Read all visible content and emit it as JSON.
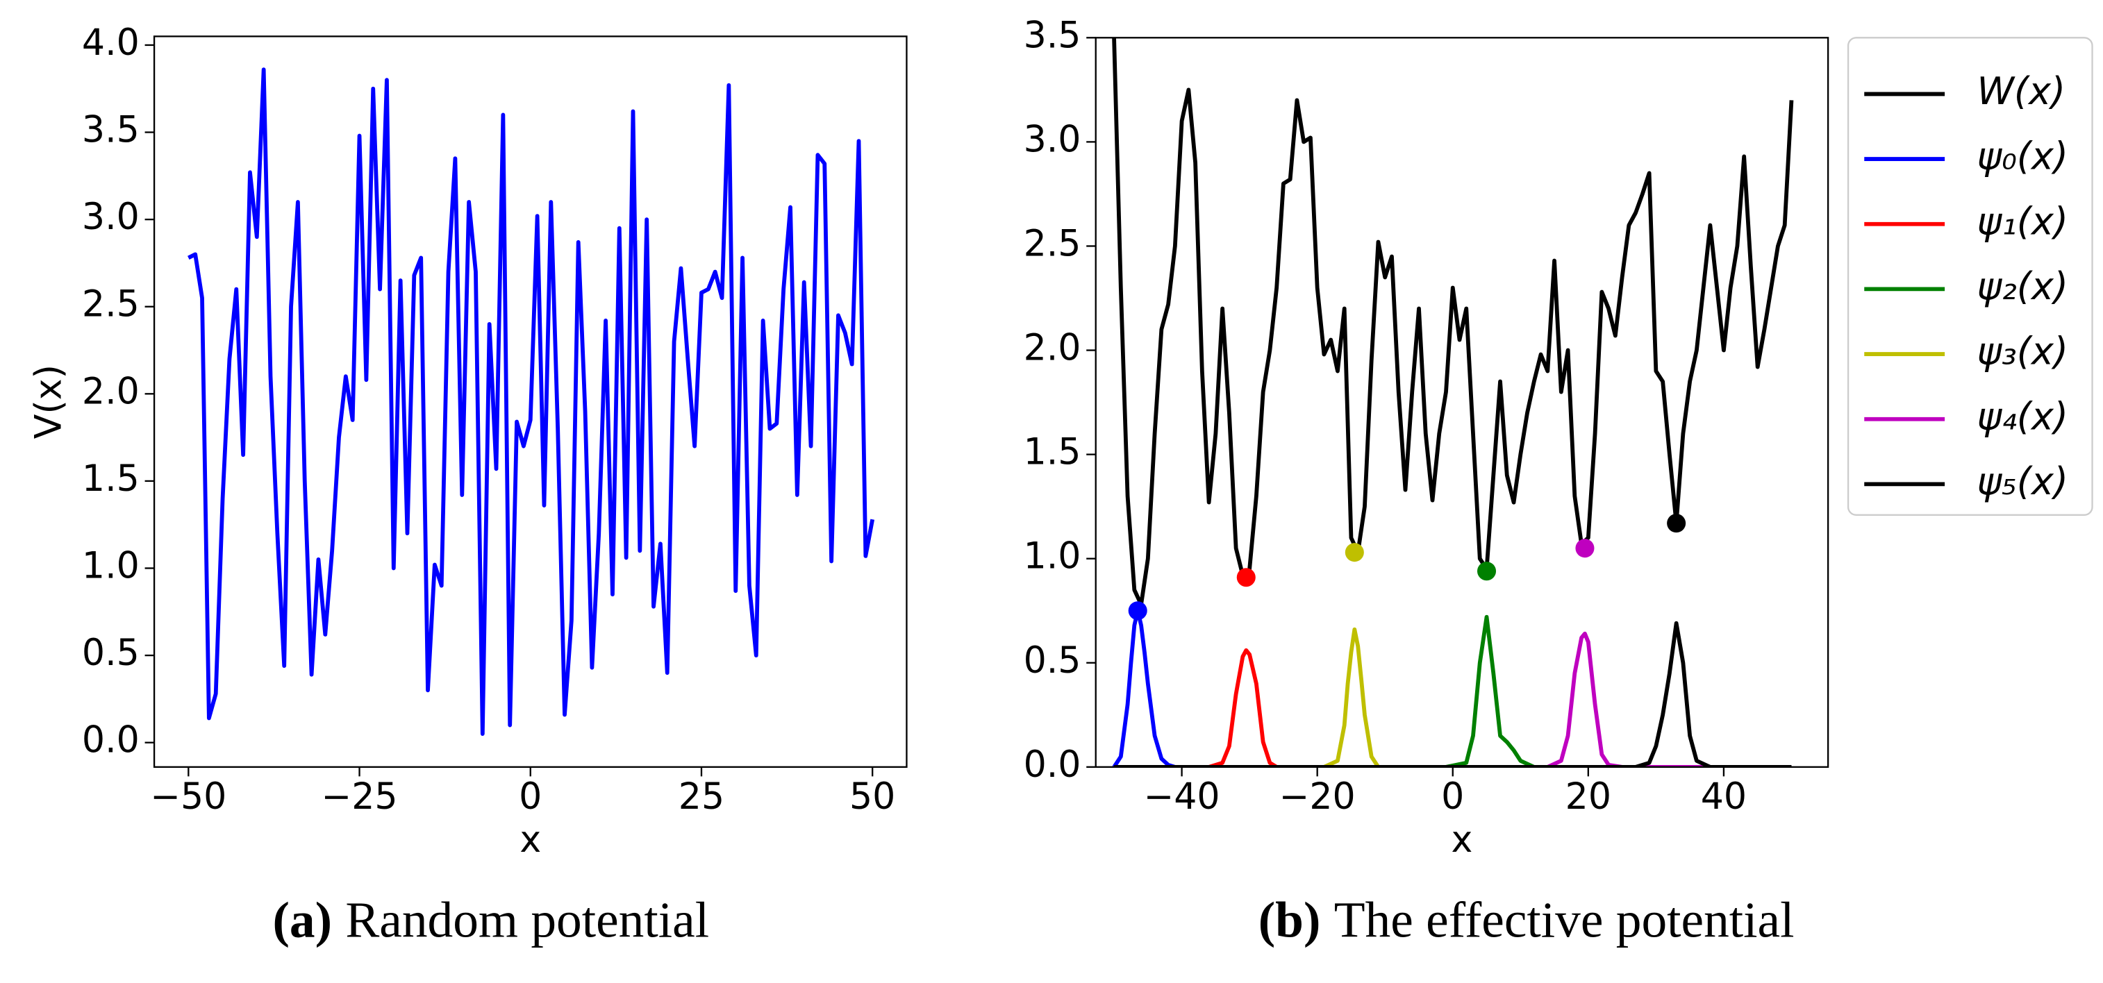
{
  "chart_data": [
    {
      "type": "line",
      "xlabel": "x",
      "ylabel": "V(x)",
      "caption": {
        "tag": "(a)",
        "text": "Random potential"
      },
      "xlim": [
        -55,
        55
      ],
      "ylim": [
        -0.14,
        4.05
      ],
      "xticks": [
        {
          "value": -50,
          "label": "−50"
        },
        {
          "value": -25,
          "label": "−25"
        },
        0,
        25,
        50
      ],
      "yticks": [
        {
          "value": 0,
          "label": "0.0"
        },
        0.5,
        {
          "value": 1,
          "label": "1.0"
        },
        1.5,
        {
          "value": 2,
          "label": "2.0"
        },
        2.5,
        {
          "value": 3,
          "label": "3.0"
        },
        3.5,
        {
          "value": 4,
          "label": "4.0"
        }
      ],
      "series": [
        {
          "color": "#0000ff",
          "x": [
            -50,
            -49,
            -48,
            -47,
            -46,
            -45,
            -44,
            -43,
            -42,
            -41,
            -40,
            -39,
            -38,
            -37,
            -36,
            -35,
            -34,
            -33,
            -32,
            -31,
            -30,
            -29,
            -28,
            -27,
            -26,
            -25,
            -24,
            -23,
            -22,
            -21,
            -20,
            -19,
            -18,
            -17,
            -16,
            -15,
            -14,
            -13,
            -12,
            -11,
            -10,
            -9,
            -8,
            -7,
            -6,
            -5,
            -4,
            -3,
            -2,
            -1,
            0,
            1,
            2,
            3,
            4,
            5,
            6,
            7,
            8,
            9,
            10,
            11,
            12,
            13,
            14,
            15,
            16,
            17,
            18,
            19,
            20,
            21,
            22,
            23,
            24,
            25,
            26,
            27,
            28,
            29,
            30,
            31,
            32,
            33,
            34,
            35,
            36,
            37,
            38,
            39,
            40,
            41,
            42,
            43,
            44,
            45,
            46,
            47,
            48,
            49,
            50
          ],
          "values": [
            2.78,
            2.8,
            2.55,
            0.14,
            0.28,
            1.4,
            2.2,
            2.6,
            1.65,
            3.27,
            2.9,
            3.86,
            2.1,
            1.2,
            0.44,
            2.5,
            3.1,
            1.5,
            0.39,
            1.05,
            0.62,
            1.1,
            1.75,
            2.1,
            1.85,
            3.48,
            2.08,
            3.75,
            2.6,
            3.8,
            1.0,
            2.65,
            1.2,
            2.68,
            2.78,
            0.3,
            1.02,
            0.9,
            2.7,
            3.35,
            1.42,
            3.1,
            2.7,
            0.05,
            2.4,
            1.57,
            3.6,
            0.1,
            1.84,
            1.7,
            1.85,
            3.02,
            1.36,
            3.1,
            1.8,
            0.16,
            0.7,
            2.87,
            1.9,
            0.43,
            1.2,
            2.42,
            0.85,
            2.95,
            1.06,
            3.62,
            1.1,
            3.0,
            0.78,
            1.14,
            0.4,
            2.3,
            2.72,
            2.2,
            1.7,
            2.58,
            2.6,
            2.7,
            2.55,
            3.77,
            0.87,
            2.78,
            0.9,
            0.5,
            2.42,
            1.8,
            1.83,
            2.6,
            3.07,
            1.42,
            2.64,
            1.7,
            3.37,
            3.32,
            1.04,
            2.45,
            2.35,
            2.17,
            3.45,
            1.07,
            1.28
          ]
        }
      ]
    },
    {
      "type": "line",
      "xlabel": "x",
      "caption": {
        "tag": "(b)",
        "text": "The effective potential"
      },
      "legend": "outside upper right",
      "xlim": [
        -52.7,
        55.4
      ],
      "ylim": [
        0,
        3.5
      ],
      "xticks": [
        {
          "value": -40,
          "label": "−40"
        },
        {
          "value": -20,
          "label": "−20"
        },
        0,
        20,
        40
      ],
      "yticks": [
        {
          "value": 0,
          "label": "0.0"
        },
        0.5,
        {
          "value": 1,
          "label": "1.0"
        },
        1.5,
        {
          "value": 2,
          "label": "2.0"
        },
        2.5,
        {
          "value": 3,
          "label": "3.0"
        },
        3.5
      ],
      "series": [
        {
          "name": "W(x)",
          "color": "#000000",
          "x": [
            -50,
            -49,
            -48,
            -47,
            -46,
            -45,
            -44,
            -43,
            -42,
            -41,
            -40,
            -39,
            -38,
            -37,
            -36,
            -35,
            -34,
            -33,
            -32,
            -31,
            -30,
            -29,
            -28,
            -27,
            -26,
            -25,
            -24,
            -23,
            -22,
            -21,
            -20,
            -19,
            -18,
            -17,
            -16,
            -15,
            -14,
            -13,
            -12,
            -11,
            -10,
            -9,
            -8,
            -7,
            -6,
            -5,
            -4,
            -3,
            -2,
            -1,
            0,
            1,
            2,
            3,
            4,
            5,
            6,
            7,
            8,
            9,
            10,
            11,
            12,
            13,
            14,
            15,
            16,
            17,
            18,
            19,
            20,
            21,
            22,
            23,
            24,
            25,
            26,
            27,
            28,
            29,
            30,
            31,
            32,
            33,
            34,
            35,
            36,
            37,
            38,
            39,
            40,
            41,
            42,
            43,
            44,
            45,
            46,
            47,
            48,
            49,
            50
          ],
          "values": [
            3.5,
            2.3,
            1.3,
            0.85,
            0.78,
            1.0,
            1.6,
            2.1,
            2.22,
            2.5,
            3.1,
            3.25,
            2.9,
            1.9,
            1.27,
            1.6,
            2.2,
            1.7,
            1.05,
            0.92,
            0.95,
            1.3,
            1.8,
            2.0,
            2.3,
            2.8,
            2.82,
            3.2,
            3.0,
            3.02,
            2.3,
            1.98,
            2.05,
            1.9,
            2.2,
            1.1,
            1.03,
            1.25,
            1.95,
            2.52,
            2.35,
            2.45,
            1.8,
            1.33,
            1.8,
            2.2,
            1.6,
            1.28,
            1.6,
            1.8,
            2.3,
            2.05,
            2.2,
            1.6,
            1.0,
            0.95,
            1.4,
            1.85,
            1.4,
            1.27,
            1.5,
            1.7,
            1.85,
            1.98,
            1.9,
            2.43,
            1.8,
            2.0,
            1.3,
            1.07,
            1.1,
            1.6,
            2.28,
            2.2,
            2.07,
            2.35,
            2.6,
            2.66,
            2.75,
            2.85,
            1.9,
            1.85,
            1.5,
            1.17,
            1.6,
            1.85,
            2.0,
            2.3,
            2.6,
            2.3,
            2.0,
            2.3,
            2.5,
            2.93,
            2.4,
            1.92,
            2.1,
            2.3,
            2.5,
            2.6,
            3.2
          ]
        },
        {
          "name": "ψ₀(x)",
          "color": "#0000ff",
          "x": [
            -50,
            -49,
            -48,
            -47.5,
            -47,
            -46.5,
            -46,
            -45.5,
            -45,
            -44,
            -43,
            -42,
            -41,
            50
          ],
          "values": [
            0,
            0.05,
            0.3,
            0.5,
            0.68,
            0.75,
            0.68,
            0.55,
            0.4,
            0.15,
            0.04,
            0.01,
            0,
            0
          ],
          "marker_x": -46.5,
          "marker_y": 0.75
        },
        {
          "name": "ψ₁(x)",
          "color": "#ff0000",
          "x": [
            -50,
            -36,
            -34,
            -33,
            -32,
            -31,
            -30.5,
            -30,
            -29,
            -28,
            -27,
            -26,
            50
          ],
          "values": [
            0,
            0,
            0.02,
            0.1,
            0.35,
            0.53,
            0.56,
            0.54,
            0.4,
            0.12,
            0.02,
            0,
            0
          ],
          "marker_x": -30.5,
          "marker_y": 0.91
        },
        {
          "name": "ψ₂(x)",
          "color": "#008000",
          "x": [
            -50,
            -1,
            2,
            3,
            4,
            5,
            6,
            7,
            8,
            9,
            10,
            12,
            50
          ],
          "values": [
            0,
            0,
            0.02,
            0.15,
            0.5,
            0.72,
            0.45,
            0.15,
            0.12,
            0.08,
            0.03,
            0,
            0
          ],
          "marker_x": 5,
          "marker_y": 0.94
        },
        {
          "name": "ψ₃(x)",
          "color": "#bfbf00",
          "x": [
            -50,
            -19,
            -17,
            -16,
            -15.5,
            -15,
            -14.5,
            -14,
            -13.5,
            -13,
            -12,
            -11,
            50
          ],
          "values": [
            0,
            0,
            0.03,
            0.2,
            0.4,
            0.55,
            0.66,
            0.58,
            0.42,
            0.25,
            0.05,
            0,
            0
          ],
          "marker_x": -14.5,
          "marker_y": 1.03
        },
        {
          "name": "ψ₄(x)",
          "color": "#bf00bf",
          "x": [
            -50,
            14,
            16,
            17,
            18,
            19,
            19.5,
            20,
            21,
            22,
            23,
            25,
            50
          ],
          "values": [
            0,
            0,
            0.03,
            0.15,
            0.45,
            0.62,
            0.64,
            0.6,
            0.3,
            0.06,
            0.01,
            0,
            0
          ],
          "marker_x": 19.5,
          "marker_y": 1.05
        },
        {
          "name": "ψ₅(x)",
          "color": "#000000",
          "x": [
            -50,
            27,
            29,
            30,
            31,
            32,
            33,
            34,
            35,
            36,
            38,
            50
          ],
          "values": [
            0,
            0,
            0.02,
            0.1,
            0.25,
            0.45,
            0.69,
            0.5,
            0.15,
            0.03,
            0,
            0
          ],
          "marker_x": 33,
          "marker_y": 1.17
        }
      ]
    }
  ]
}
